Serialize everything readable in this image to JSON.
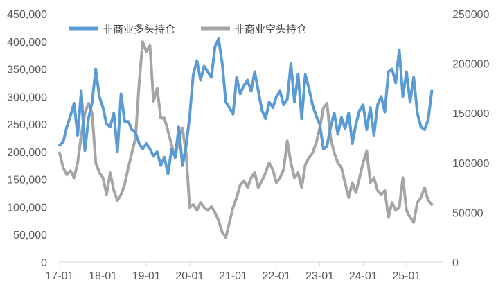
{
  "chart_data": {
    "type": "line",
    "x_tick_labels": [
      "17-01",
      "18-01",
      "19-01",
      "20-01",
      "21-01",
      "22-01",
      "23-01",
      "24-01",
      "25-01"
    ],
    "left_axis": {
      "ylim": [
        0,
        450000
      ],
      "tick_values": [
        0,
        50000,
        100000,
        150000,
        200000,
        250000,
        300000,
        350000,
        400000,
        450000
      ],
      "tick_labels": [
        "0",
        "50,000",
        "100,000",
        "150,000",
        "200,000",
        "250,000",
        "300,000",
        "350,000",
        "400,000",
        "450,000"
      ]
    },
    "right_axis": {
      "ylim": [
        0,
        250000
      ],
      "tick_values": [
        0,
        50000,
        100000,
        150000,
        200000,
        250000
      ],
      "tick_labels": [
        "0",
        "50000",
        "100000",
        "150000",
        "200000",
        "250000"
      ]
    },
    "grid": false,
    "legend_position": "top-left",
    "series": [
      {
        "name": "非商业多头持仓",
        "axis": "left",
        "color": "#5B9BD5",
        "points": [
          [
            "17-01",
            212000
          ],
          [
            "17-02",
            218000
          ],
          [
            "17-03",
            245000
          ],
          [
            "17-04",
            265000
          ],
          [
            "17-05",
            288000
          ],
          [
            "17-06",
            230000
          ],
          [
            "17-07",
            310000
          ],
          [
            "17-08",
            202000
          ],
          [
            "17-09",
            260000
          ],
          [
            "17-10",
            290000
          ],
          [
            "17-11",
            350000
          ],
          [
            "17-12",
            300000
          ],
          [
            "18-01",
            280000
          ],
          [
            "18-02",
            250000
          ],
          [
            "18-03",
            245000
          ],
          [
            "18-04",
            270000
          ],
          [
            "18-05",
            200000
          ],
          [
            "18-06",
            305000
          ],
          [
            "18-07",
            255000
          ],
          [
            "18-08",
            255000
          ],
          [
            "18-09",
            240000
          ],
          [
            "18-10",
            235000
          ],
          [
            "18-11",
            215000
          ],
          [
            "18-12",
            205000
          ],
          [
            "19-01",
            215000
          ],
          [
            "19-02",
            205000
          ],
          [
            "19-03",
            192000
          ],
          [
            "19-04",
            200000
          ],
          [
            "19-05",
            175000
          ],
          [
            "19-06",
            190000
          ],
          [
            "19-07",
            160000
          ],
          [
            "19-08",
            205000
          ],
          [
            "19-09",
            190000
          ],
          [
            "19-10",
            245000
          ],
          [
            "19-11",
            175000
          ],
          [
            "19-12",
            210000
          ],
          [
            "20-01",
            265000
          ],
          [
            "20-02",
            340000
          ],
          [
            "20-03",
            365000
          ],
          [
            "20-04",
            330000
          ],
          [
            "20-05",
            355000
          ],
          [
            "20-06",
            345000
          ],
          [
            "20-07",
            335000
          ],
          [
            "20-08",
            390000
          ],
          [
            "20-09",
            405000
          ],
          [
            "20-10",
            360000
          ],
          [
            "20-11",
            290000
          ],
          [
            "20-12",
            280000
          ],
          [
            "21-01",
            268000
          ],
          [
            "21-02",
            335000
          ],
          [
            "21-03",
            305000
          ],
          [
            "21-04",
            320000
          ],
          [
            "21-05",
            330000
          ],
          [
            "21-06",
            310000
          ],
          [
            "21-07",
            345000
          ],
          [
            "21-08",
            310000
          ],
          [
            "21-09",
            275000
          ],
          [
            "21-10",
            260000
          ],
          [
            "21-11",
            290000
          ],
          [
            "21-12",
            280000
          ],
          [
            "22-01",
            300000
          ],
          [
            "22-02",
            310000
          ],
          [
            "22-03",
            285000
          ],
          [
            "22-04",
            295000
          ],
          [
            "22-05",
            360000
          ],
          [
            "22-06",
            290000
          ],
          [
            "22-07",
            340000
          ],
          [
            "22-08",
            260000
          ],
          [
            "22-09",
            340000
          ],
          [
            "22-10",
            315000
          ],
          [
            "22-11",
            285000
          ],
          [
            "22-12",
            265000
          ],
          [
            "23-01",
            250000
          ],
          [
            "23-02",
            205000
          ],
          [
            "23-03",
            210000
          ],
          [
            "23-04",
            245000
          ],
          [
            "23-05",
            270000
          ],
          [
            "23-06",
            232000
          ],
          [
            "23-07",
            262000
          ],
          [
            "23-08",
            242000
          ],
          [
            "23-09",
            270000
          ],
          [
            "23-10",
            215000
          ],
          [
            "23-11",
            250000
          ],
          [
            "23-12",
            275000
          ],
          [
            "24-01",
            285000
          ],
          [
            "24-02",
            240000
          ],
          [
            "24-03",
            280000
          ],
          [
            "24-04",
            230000
          ],
          [
            "24-05",
            285000
          ],
          [
            "24-06",
            300000
          ],
          [
            "24-07",
            272000
          ],
          [
            "24-08",
            345000
          ],
          [
            "24-09",
            350000
          ],
          [
            "24-10",
            325000
          ],
          [
            "24-11",
            385000
          ],
          [
            "24-12",
            300000
          ],
          [
            "25-01",
            345000
          ],
          [
            "25-02",
            290000
          ],
          [
            "25-03",
            335000
          ],
          [
            "25-04",
            270000
          ],
          [
            "25-05",
            245000
          ],
          [
            "25-06",
            240000
          ],
          [
            "25-07",
            258000
          ],
          [
            "25-08",
            310000
          ]
        ]
      },
      {
        "name": "非商业空头持仓",
        "axis": "right",
        "color": "#A5A5A5",
        "points": [
          [
            "17-01",
            110000
          ],
          [
            "17-02",
            95000
          ],
          [
            "17-03",
            88000
          ],
          [
            "17-04",
            92000
          ],
          [
            "17-05",
            85000
          ],
          [
            "17-06",
            100000
          ],
          [
            "17-07",
            128000
          ],
          [
            "17-08",
            150000
          ],
          [
            "17-09",
            160000
          ],
          [
            "17-10",
            150000
          ],
          [
            "17-11",
            100000
          ],
          [
            "17-12",
            90000
          ],
          [
            "18-01",
            85000
          ],
          [
            "18-02",
            68000
          ],
          [
            "18-03",
            90000
          ],
          [
            "18-04",
            72000
          ],
          [
            "18-05",
            62000
          ],
          [
            "18-06",
            68000
          ],
          [
            "18-07",
            78000
          ],
          [
            "18-08",
            95000
          ],
          [
            "18-09",
            110000
          ],
          [
            "18-10",
            125000
          ],
          [
            "18-11",
            180000
          ],
          [
            "18-12",
            222000
          ],
          [
            "19-01",
            212000
          ],
          [
            "19-02",
            218000
          ],
          [
            "19-03",
            162000
          ],
          [
            "19-04",
            175000
          ],
          [
            "19-05",
            145000
          ],
          [
            "19-06",
            145000
          ],
          [
            "19-07",
            132000
          ],
          [
            "19-08",
            118000
          ],
          [
            "19-09",
            105000
          ],
          [
            "19-10",
            125000
          ],
          [
            "19-11",
            135000
          ],
          [
            "19-12",
            110000
          ],
          [
            "20-01",
            55000
          ],
          [
            "20-02",
            58000
          ],
          [
            "20-03",
            52000
          ],
          [
            "20-04",
            60000
          ],
          [
            "20-05",
            55000
          ],
          [
            "20-06",
            52000
          ],
          [
            "20-07",
            56000
          ],
          [
            "20-08",
            50000
          ],
          [
            "20-09",
            42000
          ],
          [
            "20-10",
            30000
          ],
          [
            "20-11",
            25000
          ],
          [
            "20-12",
            40000
          ],
          [
            "21-01",
            55000
          ],
          [
            "21-02",
            65000
          ],
          [
            "21-03",
            78000
          ],
          [
            "21-04",
            82000
          ],
          [
            "21-05",
            75000
          ],
          [
            "21-06",
            85000
          ],
          [
            "21-07",
            90000
          ],
          [
            "21-08",
            75000
          ],
          [
            "21-09",
            82000
          ],
          [
            "21-10",
            90000
          ],
          [
            "21-11",
            100000
          ],
          [
            "21-12",
            93000
          ],
          [
            "22-01",
            80000
          ],
          [
            "22-02",
            85000
          ],
          [
            "22-03",
            93000
          ],
          [
            "22-04",
            122000
          ],
          [
            "22-05",
            100000
          ],
          [
            "22-06",
            85000
          ],
          [
            "22-07",
            90000
          ],
          [
            "22-08",
            75000
          ],
          [
            "22-09",
            98000
          ],
          [
            "22-10",
            105000
          ],
          [
            "22-11",
            110000
          ],
          [
            "22-12",
            120000
          ],
          [
            "23-01",
            135000
          ],
          [
            "23-02",
            155000
          ],
          [
            "23-03",
            160000
          ],
          [
            "23-04",
            125000
          ],
          [
            "23-05",
            110000
          ],
          [
            "23-06",
            100000
          ],
          [
            "23-07",
            95000
          ],
          [
            "23-08",
            80000
          ],
          [
            "23-09",
            65000
          ],
          [
            "23-10",
            80000
          ],
          [
            "23-11",
            70000
          ],
          [
            "23-12",
            85000
          ],
          [
            "24-01",
            100000
          ],
          [
            "24-02",
            112000
          ],
          [
            "24-03",
            80000
          ],
          [
            "24-04",
            85000
          ],
          [
            "24-05",
            72000
          ],
          [
            "24-06",
            68000
          ],
          [
            "24-07",
            72000
          ],
          [
            "24-08",
            45000
          ],
          [
            "24-09",
            60000
          ],
          [
            "24-10",
            52000
          ],
          [
            "24-11",
            55000
          ],
          [
            "24-12",
            85000
          ],
          [
            "25-01",
            52000
          ],
          [
            "25-02",
            45000
          ],
          [
            "25-03",
            40000
          ],
          [
            "25-04",
            60000
          ],
          [
            "25-05",
            65000
          ],
          [
            "25-06",
            75000
          ],
          [
            "25-07",
            62000
          ],
          [
            "25-08",
            58000
          ]
        ]
      }
    ]
  }
}
